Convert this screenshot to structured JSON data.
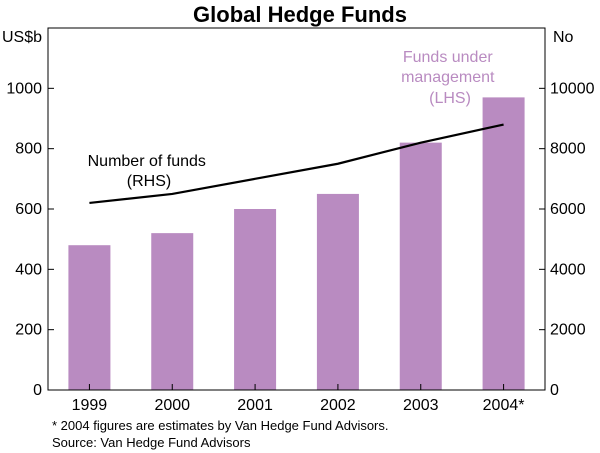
{
  "chart_data": {
    "type": "bar+line",
    "title": "Global Hedge Funds",
    "categories": [
      "1999",
      "2000",
      "2001",
      "2002",
      "2003",
      "2004*"
    ],
    "series": [
      {
        "name": "Funds under management (LHS)",
        "type": "bar",
        "axis": "left",
        "unit": "US$b",
        "values": [
          480,
          520,
          600,
          650,
          820,
          970
        ]
      },
      {
        "name": "Number of funds (RHS)",
        "type": "line",
        "axis": "right",
        "unit": "No",
        "values": [
          6200,
          6500,
          7000,
          7500,
          8200,
          8800
        ]
      }
    ],
    "left_axis": {
      "label": "US$b",
      "ylim": [
        0,
        1200
      ],
      "ticks": [
        0,
        200,
        400,
        600,
        800,
        1000
      ]
    },
    "right_axis": {
      "label": "No",
      "ylim": [
        0,
        12000
      ],
      "ticks": [
        0,
        2000,
        4000,
        6000,
        8000,
        10000
      ]
    },
    "annotations": {
      "bars": [
        "Funds under",
        "management",
        "(LHS)"
      ],
      "line": [
        "Number of funds",
        "(RHS)"
      ]
    },
    "footnotes": [
      "* 2004 figures are estimates by Van Hedge Fund Advisors.",
      "Source: Van Hedge Fund Advisors"
    ],
    "colors": {
      "bar": "#b98bc1",
      "line": "#000000",
      "frame": "#000000"
    }
  }
}
